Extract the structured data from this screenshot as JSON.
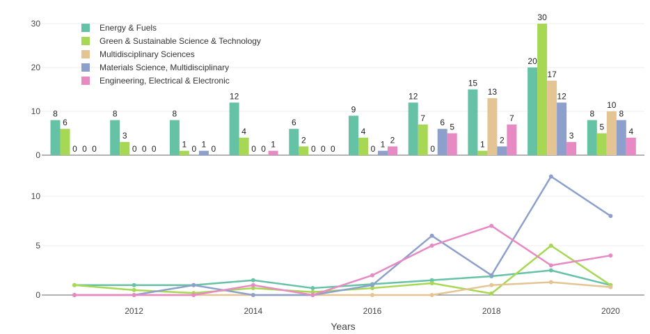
{
  "chart_data": [
    {
      "type": "bar",
      "categories": [
        "2011",
        "2012",
        "2013",
        "2014",
        "2015",
        "2016",
        "2017",
        "2018",
        "2019",
        "2020"
      ],
      "ylim": [
        0,
        30
      ],
      "yticks": [
        0,
        10,
        20,
        30
      ],
      "legend_position": "top-left",
      "grid": true,
      "series": [
        {
          "name": "Energy & Fuels",
          "color": "#66c2a5",
          "values": [
            8,
            8,
            8,
            12,
            6,
            9,
            12,
            15,
            20,
            8
          ]
        },
        {
          "name": "Green & Sustainable Science & Technology",
          "color": "#a6d854",
          "values": [
            6,
            3,
            1,
            4,
            2,
            4,
            7,
            1,
            30,
            5
          ]
        },
        {
          "name": "Multidisciplinary Sciences",
          "color": "#e5c494",
          "values": [
            0,
            0,
            0,
            0,
            0,
            0,
            0,
            13,
            17,
            10
          ]
        },
        {
          "name": "Materials Science, Multidisciplinary",
          "color": "#8da0cb",
          "values": [
            0,
            0,
            1,
            0,
            0,
            1,
            6,
            2,
            12,
            8
          ]
        },
        {
          "name": "Engineering, Electrical & Electronic",
          "color": "#e78ac3",
          "values": [
            0,
            0,
            0,
            1,
            0,
            2,
            5,
            7,
            3,
            4
          ]
        }
      ]
    },
    {
      "type": "line",
      "x": [
        2011,
        2012,
        2013,
        2014,
        2015,
        2016,
        2017,
        2018,
        2019,
        2020
      ],
      "xticks": [
        2012,
        2014,
        2016,
        2018,
        2020
      ],
      "xlabel": "Years",
      "ylim": [
        0,
        13
      ],
      "yticks": [
        0,
        5,
        10
      ],
      "grid": true,
      "series": [
        {
          "name": "Energy & Fuels",
          "color": "#66c2a5",
          "values": [
            1,
            1,
            1,
            1.5,
            0.7,
            1.1,
            1.5,
            1.9,
            2.5,
            1
          ]
        },
        {
          "name": "Green & Sustainable Science & Technology",
          "color": "#a6d854",
          "values": [
            1,
            0.5,
            0.2,
            0.7,
            0.3,
            0.7,
            1.2,
            0.15,
            5,
            1
          ]
        },
        {
          "name": "Multidisciplinary Sciences",
          "color": "#e5c494",
          "values": [
            0,
            0,
            0,
            0,
            0,
            0,
            0,
            1,
            1.3,
            0.8
          ]
        },
        {
          "name": "Materials Science, Multidisciplinary",
          "color": "#8da0cb",
          "values": [
            0,
            0,
            1,
            0,
            0,
            1,
            6,
            2,
            12,
            8
          ]
        },
        {
          "name": "Engineering, Electrical & Electronic",
          "color": "#e78ac3",
          "values": [
            0,
            0,
            0,
            1,
            0,
            2,
            5,
            7,
            3,
            4
          ]
        }
      ]
    }
  ]
}
